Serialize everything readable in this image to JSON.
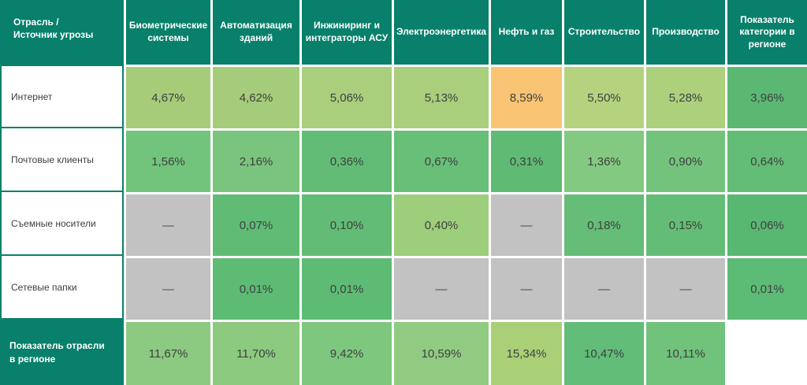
{
  "chart_data": {
    "type": "heatmap",
    "corner_label": "Отрасль /\nИсточник угрозы",
    "columns": [
      "Биометрические системы",
      "Автоматизация зданий",
      "Инжиниринг и интеграторы АСУ",
      "Электроэнергетика",
      "Нефть и газ",
      "Строительство",
      "Производство",
      "Показатель категории в регионе"
    ],
    "no_data_symbol": "—",
    "rows": [
      {
        "label": "Интернет",
        "display": [
          "4,67%",
          "4,62%",
          "5,06%",
          "5,13%",
          "8,59%",
          "5,50%",
          "5,28%",
          "3,96%"
        ],
        "values": [
          4.67,
          4.62,
          5.06,
          5.13,
          8.59,
          5.5,
          5.28,
          3.96
        ],
        "colors": [
          "#a6cc7a",
          "#a5cc7a",
          "#a9ce7c",
          "#a9ce7c",
          "#fac475",
          "#b5d37e",
          "#add07c",
          "#5bb873"
        ]
      },
      {
        "label": "Почтовые клиенты",
        "display": [
          "1,56%",
          "2,16%",
          "0,36%",
          "0,67%",
          "0,31%",
          "1,36%",
          "0,90%",
          "0,64%"
        ],
        "values": [
          1.56,
          2.16,
          0.36,
          0.67,
          0.31,
          1.36,
          0.9,
          0.64
        ],
        "colors": [
          "#72c37c",
          "#7ac57d",
          "#62bc75",
          "#68bf78",
          "#5fbb74",
          "#84c981",
          "#73c37c",
          "#64bd76"
        ]
      },
      {
        "label": "Съемные носители",
        "display": [
          "—",
          "0,07%",
          "0,10%",
          "0,40%",
          "—",
          "0,18%",
          "0,15%",
          "0,06%"
        ],
        "values": [
          null,
          0.07,
          0.1,
          0.4,
          null,
          0.18,
          0.15,
          0.06
        ],
        "colors": [
          "#c2c2c2",
          "#60bc75",
          "#62bc75",
          "#9dce7b",
          "#c2c2c2",
          "#65bd77",
          "#64bd76",
          "#58b771"
        ]
      },
      {
        "label": "Сетевые папки",
        "display": [
          "—",
          "0,01%",
          "0,01%",
          "—",
          "—",
          "—",
          "—",
          "0,01%"
        ],
        "values": [
          null,
          0.01,
          0.01,
          null,
          null,
          null,
          null,
          0.01
        ],
        "colors": [
          "#c2c2c2",
          "#5dbb74",
          "#5dbb74",
          "#c2c2c2",
          "#c2c2c2",
          "#c2c2c2",
          "#c2c2c2",
          "#5cbb74"
        ]
      }
    ],
    "footer": {
      "label": "Показатель отрасли\nв регионе",
      "display": [
        "11,67%",
        "11,70%",
        "9,42%",
        "10,59%",
        "15,34%",
        "10,47%",
        "10,11%",
        ""
      ],
      "values": [
        11.67,
        11.7,
        9.42,
        10.59,
        15.34,
        10.47,
        10.11,
        null
      ],
      "colors": [
        "#8bca80",
        "#8cca80",
        "#7ec77e",
        "#90cb81",
        "#aad077",
        "#61bd78",
        "#71c27b",
        ""
      ]
    },
    "palette": {
      "header_bg": "#08806b",
      "header_text": "#ffffff",
      "cell_text": "#3f4040",
      "no_data_bg": "#c2c2c2",
      "highlight_orange": "#fac475",
      "gutter": "#ffffff",
      "label_border": "#08806b"
    }
  }
}
